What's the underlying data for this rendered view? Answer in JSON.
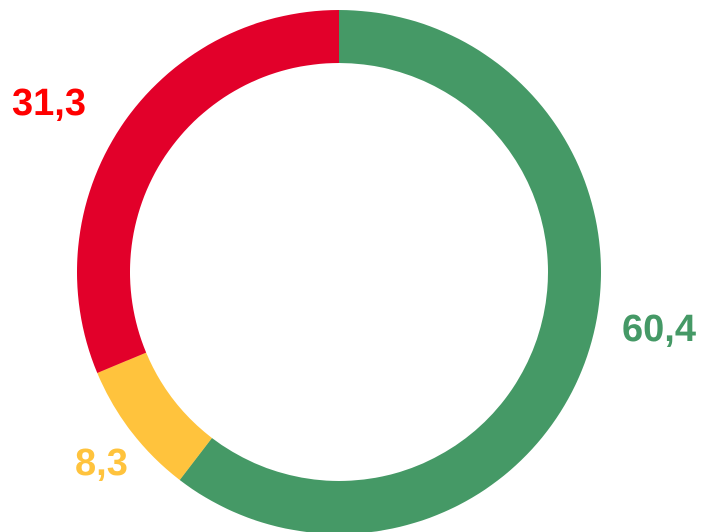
{
  "chart_data": {
    "type": "pie",
    "variant": "donut",
    "slices": [
      {
        "value": 60.4,
        "label": "60,4",
        "color": "#459966"
      },
      {
        "value": 8.3,
        "label": "8,3",
        "color": "#FFC33D"
      },
      {
        "value": 31.3,
        "label": "31,3",
        "color": "#E2002A"
      }
    ],
    "label_colors": [
      "#459966",
      "#FFC33D",
      "#FF0000"
    ],
    "start_angle_deg": 0,
    "direction": "clockwise",
    "legend": "none"
  }
}
